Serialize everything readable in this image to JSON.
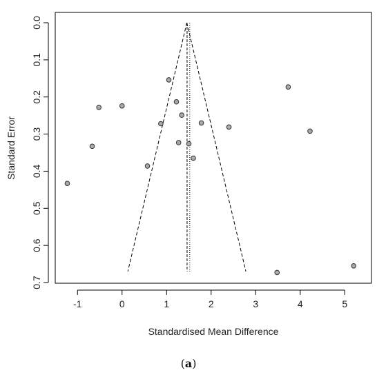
{
  "chart_data": {
    "type": "scatter",
    "title": "",
    "xlabel": "Standardised Mean Difference",
    "ylabel": "Standard Error",
    "xlim": [
      -1.5,
      5.6
    ],
    "ylim": [
      0,
      0.7
    ],
    "y_reversed": true,
    "xticks": [
      -1,
      0,
      1,
      2,
      3,
      4,
      5
    ],
    "yticks": [
      0.0,
      0.1,
      0.2,
      0.3,
      0.4,
      0.5,
      0.6,
      0.7
    ],
    "tick_labels_x": [
      "-1",
      "0",
      "1",
      "2",
      "3",
      "4",
      "5"
    ],
    "tick_labels_y": [
      "0.0",
      "0.1",
      "0.2",
      "0.3",
      "0.4",
      "0.5",
      "0.6",
      "0.7"
    ],
    "grid": false,
    "points": [
      {
        "x": -1.23,
        "y": 0.433
      },
      {
        "x": -0.67,
        "y": 0.333
      },
      {
        "x": -0.52,
        "y": 0.228
      },
      {
        "x": 0.0,
        "y": 0.224
      },
      {
        "x": 0.57,
        "y": 0.386
      },
      {
        "x": 0.87,
        "y": 0.272
      },
      {
        "x": 1.05,
        "y": 0.154
      },
      {
        "x": 1.22,
        "y": 0.213
      },
      {
        "x": 1.27,
        "y": 0.323
      },
      {
        "x": 1.34,
        "y": 0.249
      },
      {
        "x": 1.5,
        "y": 0.326
      },
      {
        "x": 1.6,
        "y": 0.365
      },
      {
        "x": 1.78,
        "y": 0.27
      },
      {
        "x": 2.4,
        "y": 0.281
      },
      {
        "x": 3.73,
        "y": 0.173
      },
      {
        "x": 4.22,
        "y": 0.292
      },
      {
        "x": 3.48,
        "y": 0.673
      },
      {
        "x": 5.2,
        "y": 0.655
      }
    ],
    "funnel": {
      "center_fixed": 1.46,
      "center_random": 1.52,
      "apex_y": 0.0,
      "base_y": 0.67,
      "base_left_x": 0.13,
      "base_right_x": 2.78
    },
    "point_fill": "#a9a9a9",
    "point_stroke": "#333333"
  },
  "caption": {
    "open": "(",
    "label": "a",
    "close": ")"
  }
}
